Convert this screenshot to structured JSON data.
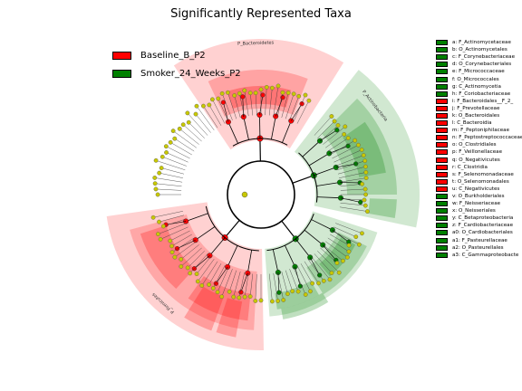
{
  "chart_data": {
    "type": "cladogram",
    "title": "Significantly Represented Taxa",
    "groups": [
      {
        "name": "Baseline_B_P2",
        "color": "#ff0000"
      },
      {
        "name": "Smoker_24_Weeks_P2",
        "color": "#008000"
      }
    ],
    "taxa": [
      {
        "key": "a",
        "name": "F_Actinomycetaceae",
        "group": "Smoker_24_Weeks_P2"
      },
      {
        "key": "b",
        "name": "O_Actinomycetales",
        "group": "Smoker_24_Weeks_P2"
      },
      {
        "key": "c",
        "name": "F_Corynebacteriaceae",
        "group": "Smoker_24_Weeks_P2"
      },
      {
        "key": "d",
        "name": "O_Corynebacteriales",
        "group": "Smoker_24_Weeks_P2"
      },
      {
        "key": "e",
        "name": "F_Micrococcaceae",
        "group": "Smoker_24_Weeks_P2"
      },
      {
        "key": "f",
        "name": "O_Micrococcales",
        "group": "Smoker_24_Weeks_P2"
      },
      {
        "key": "g",
        "name": "C_Actinomycetia",
        "group": "Smoker_24_Weeks_P2"
      },
      {
        "key": "h",
        "name": "F_Coriobacteriaceae",
        "group": "Smoker_24_Weeks_P2"
      },
      {
        "key": "i",
        "name": "F_Bacteroidales__F_2_",
        "group": "Baseline_B_P2"
      },
      {
        "key": "j",
        "name": "F_Prevotellaceae",
        "group": "Baseline_B_P2"
      },
      {
        "key": "k",
        "name": "O_Bacteroidales",
        "group": "Baseline_B_P2"
      },
      {
        "key": "l",
        "name": "C_Bacteroidia",
        "group": "Baseline_B_P2"
      },
      {
        "key": "m",
        "name": "F_Peptoniphilaceae",
        "group": "Baseline_B_P2"
      },
      {
        "key": "n",
        "name": "F_Peptostreptococcaceae",
        "group": "Baseline_B_P2"
      },
      {
        "key": "o",
        "name": "O_Clostridiales",
        "group": "Baseline_B_P2"
      },
      {
        "key": "p",
        "name": "F_Veillonellaceae",
        "group": "Baseline_B_P2"
      },
      {
        "key": "q",
        "name": "O_Negativicutes",
        "group": "Baseline_B_P2"
      },
      {
        "key": "r",
        "name": "C_Clostridia",
        "group": "Baseline_B_P2"
      },
      {
        "key": "s",
        "name": "F_Selenomonadaceae",
        "group": "Baseline_B_P2"
      },
      {
        "key": "t",
        "name": "O_Selenomonadales",
        "group": "Baseline_B_P2"
      },
      {
        "key": "u",
        "name": "C_Negativicutes",
        "group": "Baseline_B_P2"
      },
      {
        "key": "v",
        "name": "O_Burkholderiales",
        "group": "Smoker_24_Weeks_P2"
      },
      {
        "key": "w",
        "name": "F_Neisseriaceae",
        "group": "Smoker_24_Weeks_P2"
      },
      {
        "key": "x",
        "name": "O_Neisseriales",
        "group": "Smoker_24_Weeks_P2"
      },
      {
        "key": "y",
        "name": "C_Betaproteobacteria",
        "group": "Smoker_24_Weeks_P2"
      },
      {
        "key": "z",
        "name": "F_Cardiobacteriaceae",
        "group": "Smoker_24_Weeks_P2"
      },
      {
        "key": "a0",
        "name": "O_Cardiobacteriales",
        "group": "Smoker_24_Weeks_P2"
      },
      {
        "key": "a1",
        "name": "F_Pasteurellaceae",
        "group": "Smoker_24_Weeks_P2"
      },
      {
        "key": "a2",
        "name": "O_Pasteurellales",
        "group": "Smoker_24_Weeks_P2"
      },
      {
        "key": "a3",
        "name": "C_Gammaproteobacte",
        "group": "Smoker_24_Weeks_P2"
      }
    ],
    "clade_labels": [
      {
        "text": "P_Bacteroidetes",
        "group": "Baseline_B_P2"
      },
      {
        "text": "P_Actinobacteria",
        "group": "Smoker_24_Weeks_P2"
      },
      {
        "text": "P_Firmicutes",
        "group": "Baseline_B_P2"
      }
    ]
  }
}
